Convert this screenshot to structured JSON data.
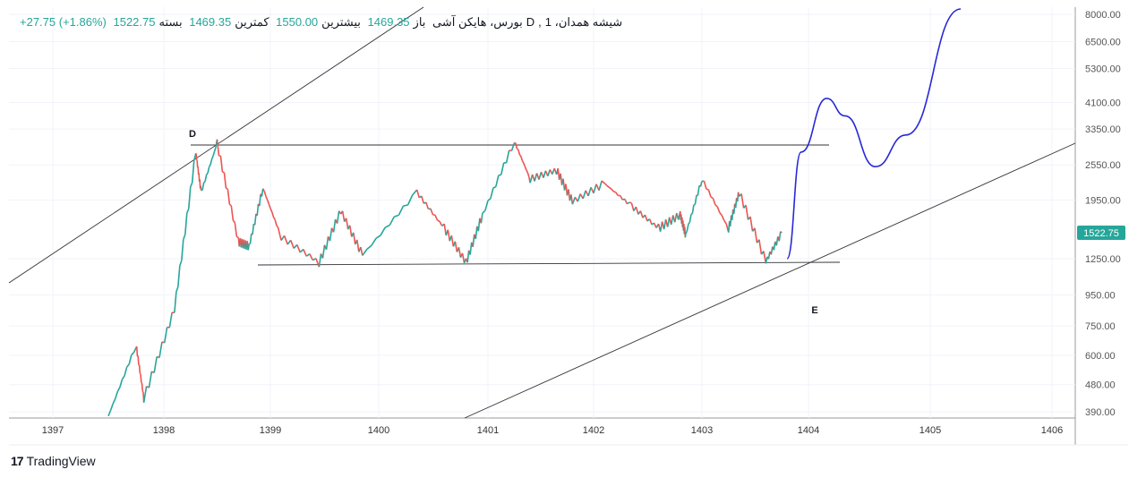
{
  "header": {
    "symbol": "شیشه همدان، 1",
    "interval": "D",
    "exchange": "بورس، هایکن آشی",
    "open_label": "باز",
    "open": "1469.35",
    "high_label": "بیشترین",
    "high": "1550.00",
    "low_label": "کمترین",
    "low": "1469.35",
    "close_label": "بسته",
    "close": "1522.75",
    "change": "+27.75 (+1.86%)"
  },
  "brand": {
    "name": "TradingView",
    "icon": "tradingview-logo-icon"
  },
  "colors": {
    "up": "#26a69a",
    "down": "#ef5350",
    "projection": "#2828d8",
    "line": "#333333"
  },
  "chart_data": {
    "type": "line",
    "scale": "log",
    "x_ticks": [
      "1397",
      "1398",
      "1399",
      "1400",
      "1401",
      "1402",
      "1403",
      "1404",
      "1405",
      "1406"
    ],
    "y_ticks": [
      "8000.00",
      "6500.00",
      "5300.00",
      "4100.00",
      "3350.00",
      "2550.00",
      "1950.00",
      "1250.00",
      "950.00",
      "750.00",
      "600.00",
      "480.00",
      "390.00"
    ],
    "last_price": "1522.75",
    "annotations": [
      "D",
      "E"
    ],
    "series": [
      {
        "name": "price",
        "x": [
          1397.5,
          1397.75,
          1397.82,
          1398.1,
          1398.3,
          1398.35,
          1398.5,
          1398.7,
          1398.8,
          1398.93,
          1399.1,
          1399.45,
          1399.65,
          1399.85,
          1400.35,
          1400.6,
          1400.8,
          1400.95,
          1401.25,
          1401.4,
          1401.65,
          1401.8,
          1402.1,
          1402.35,
          1402.6,
          1402.8,
          1402.85,
          1403.0,
          1403.25,
          1403.35,
          1403.6,
          1403.75
        ],
        "y": [
          378,
          650,
          433,
          854,
          2810,
          2070,
          3000,
          1420,
          1375,
          2140,
          1475,
          1215,
          1800,
          1285,
          2070,
          1575,
          1215,
          1745,
          3050,
          2290,
          2450,
          1930,
          2215,
          1865,
          1575,
          1745,
          1500,
          2290,
          1575,
          2070,
          1225,
          1522
        ]
      },
      {
        "name": "projection",
        "x": [
          1403.8,
          1403.93,
          1404.15,
          1404.3,
          1404.55,
          1404.8,
          1405.25
        ],
        "y": [
          1250,
          2810,
          4225,
          3700,
          2515,
          3200,
          8340
        ]
      }
    ]
  }
}
